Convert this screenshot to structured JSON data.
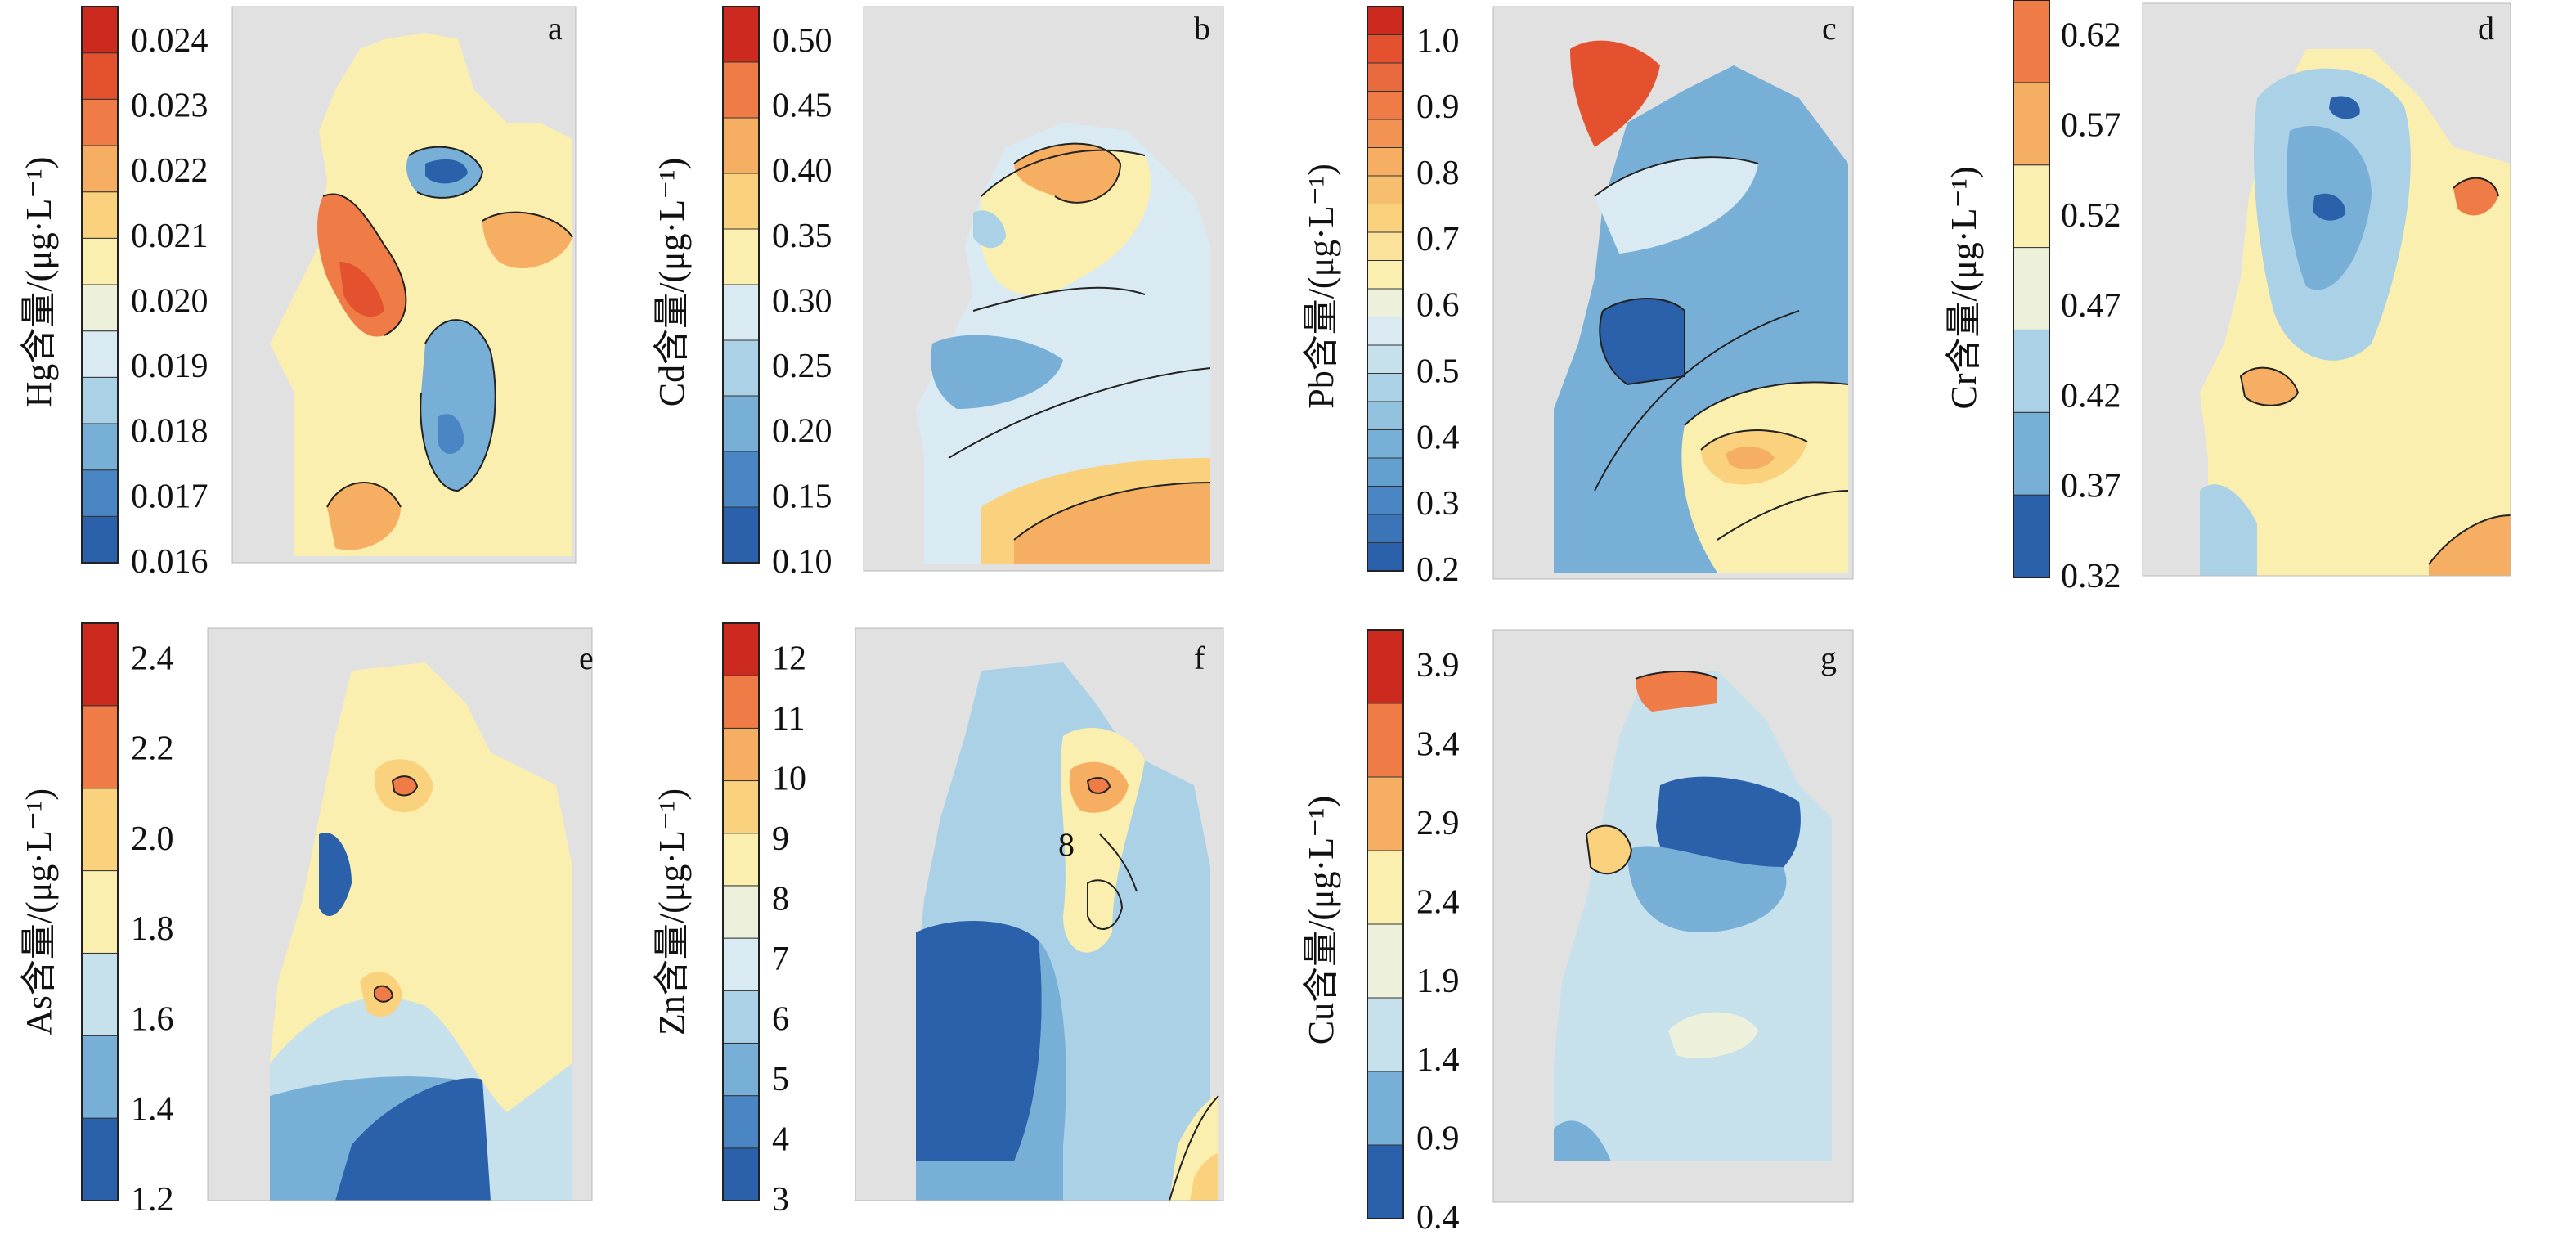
{
  "panels": [
    {
      "id": "a",
      "letter": "a",
      "element": "Hg",
      "axis_label": "Hg含量/(μg·L⁻¹)",
      "ticks": [
        "0.024",
        "0.023",
        "0.022",
        "0.021",
        "0.020",
        "0.019",
        "0.018",
        "0.017",
        "0.016"
      ],
      "colors": [
        "#2b61ab",
        "#4a86c3",
        "#78afd6",
        "#abd1e6",
        "#d9eaf2",
        "#edf1dc",
        "#fbefb0",
        "#fad17d",
        "#f6ae63",
        "#ef7c47",
        "#e3512f",
        "#cc2a1f"
      ]
    },
    {
      "id": "b",
      "letter": "b",
      "element": "Cd",
      "axis_label": "Cd含量/(μg·L⁻¹)",
      "ticks": [
        "0.50",
        "0.45",
        "0.40",
        "0.35",
        "0.30",
        "0.25",
        "0.20",
        "0.15",
        "0.10"
      ],
      "colors": [
        "#2b61ab",
        "#4a86c3",
        "#78afd6",
        "#abd1e6",
        "#d9eaf2",
        "#fbefb0",
        "#fad17d",
        "#f6ae63",
        "#ef7c47",
        "#cc2a1f"
      ]
    },
    {
      "id": "c",
      "letter": "c",
      "element": "Pb",
      "axis_label": "Pb含量/(μg·L⁻¹)",
      "ticks": [
        "1.0",
        "0.9",
        "0.8",
        "0.7",
        "0.6",
        "0.5",
        "0.4",
        "0.3",
        "0.2"
      ],
      "colors": [
        "#2b61ab",
        "#3b74b7",
        "#4a86c3",
        "#63a0cf",
        "#78afd6",
        "#92c2de",
        "#abd1e6",
        "#c6e0ec",
        "#d9eaf2",
        "#edf1dc",
        "#fbefb0",
        "#fbe29a",
        "#fad17d",
        "#f7bf6d",
        "#f6ae63",
        "#f29354",
        "#ef7c47",
        "#e96a3e",
        "#e3512f",
        "#cc2a1f"
      ]
    },
    {
      "id": "d",
      "letter": "d",
      "element": "Cr",
      "axis_label": "Cr含量/(μg·L⁻¹)",
      "ticks": [
        "0.62",
        "0.57",
        "0.52",
        "0.47",
        "0.42",
        "0.37",
        "0.32"
      ],
      "colors": [
        "#2b61ab",
        "#78afd6",
        "#abd1e6",
        "#edf1dc",
        "#fbefb0",
        "#f6ae63",
        "#ef7c47"
      ]
    },
    {
      "id": "e",
      "letter": "e",
      "element": "As",
      "axis_label": "As含量/(μg·L⁻¹)",
      "ticks": [
        "2.4",
        "2.2",
        "2.0",
        "1.8",
        "1.6",
        "1.4",
        "1.2"
      ],
      "colors": [
        "#2b61ab",
        "#78afd6",
        "#c6e0ec",
        "#fbefb0",
        "#fad17d",
        "#ef7c47",
        "#cc2a1f"
      ]
    },
    {
      "id": "f",
      "letter": "f",
      "element": "Zn",
      "axis_label": "Zn含量/(μg·L⁻¹)",
      "ticks": [
        "12",
        "11",
        "10",
        "9",
        "8",
        "7",
        "6",
        "5",
        "4",
        "3"
      ],
      "colors": [
        "#2b61ab",
        "#4a86c3",
        "#78afd6",
        "#abd1e6",
        "#d9eaf2",
        "#edf1dc",
        "#fbefb0",
        "#fad17d",
        "#f6ae63",
        "#ef7c47",
        "#cc2a1f"
      ]
    },
    {
      "id": "g",
      "letter": "g",
      "element": "Cu",
      "axis_label": "Cu含量/(μg·L⁻¹)",
      "ticks": [
        "3.9",
        "3.4",
        "2.9",
        "2.4",
        "1.9",
        "1.4",
        "0.9",
        "0.4"
      ],
      "colors": [
        "#2b61ab",
        "#78afd6",
        "#c6e0ec",
        "#edf1dc",
        "#fbefb0",
        "#f6ae63",
        "#ef7c47",
        "#cc2a1f"
      ]
    }
  ],
  "annotations": {
    "f_contour_value": "8"
  },
  "land_color": "#e1e1e1",
  "coast_color": "#8a8a8a"
}
